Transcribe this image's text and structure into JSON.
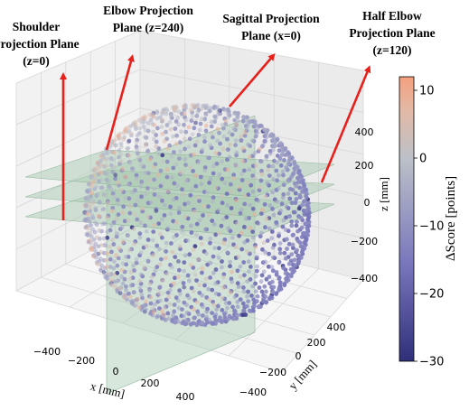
{
  "chart_data": {
    "type": "scatter",
    "title": "",
    "annotations": [
      {
        "lines": [
          "Shoulder",
          "Projection Plane",
          "(z=0)"
        ]
      },
      {
        "lines": [
          "Elbow Projection",
          "Plane (z=240)"
        ]
      },
      {
        "lines": [
          "Sagittal Projection",
          "Plane (x=0)"
        ]
      },
      {
        "lines": [
          "Half Elbow",
          "Projection Plane",
          "(z=120)"
        ]
      }
    ],
    "axes": {
      "x": {
        "label": "x [mm]",
        "ticks": [
          "−400",
          "−200",
          "0",
          "200",
          "400"
        ],
        "range": [
          -500,
          500
        ]
      },
      "y": {
        "label": "y [mm]",
        "ticks": [
          "−400",
          "−200",
          "0",
          "200",
          "400"
        ],
        "range": [
          -500,
          500
        ]
      },
      "z": {
        "label": "z [mm]",
        "ticks": [
          "−400",
          "−200",
          "0",
          "200",
          "400"
        ],
        "range": [
          -500,
          500
        ]
      }
    },
    "planes": [
      {
        "name": "Shoulder Projection Plane",
        "axis": "z",
        "value": 0
      },
      {
        "name": "Half Elbow Projection Plane",
        "axis": "z",
        "value": 120
      },
      {
        "name": "Elbow Projection Plane",
        "axis": "z",
        "value": 240
      },
      {
        "name": "Sagittal Projection Plane",
        "axis": "x",
        "value": 0
      }
    ],
    "point_cloud": {
      "shape": "sphere",
      "radius_mm": 500,
      "value_range": [
        -30,
        12
      ]
    },
    "colorbar": {
      "label": "ΔScore [points]",
      "ticks": [
        "10",
        "0",
        "−10",
        "−20",
        "−30"
      ],
      "range": [
        -30,
        12
      ]
    },
    "colors": {
      "high": "#f5a07f",
      "mid": "#bcc1c8",
      "low": "#2f2f7a",
      "arrow": "#e8201c",
      "plane": "#a9c9b2"
    },
    "grid": true
  }
}
